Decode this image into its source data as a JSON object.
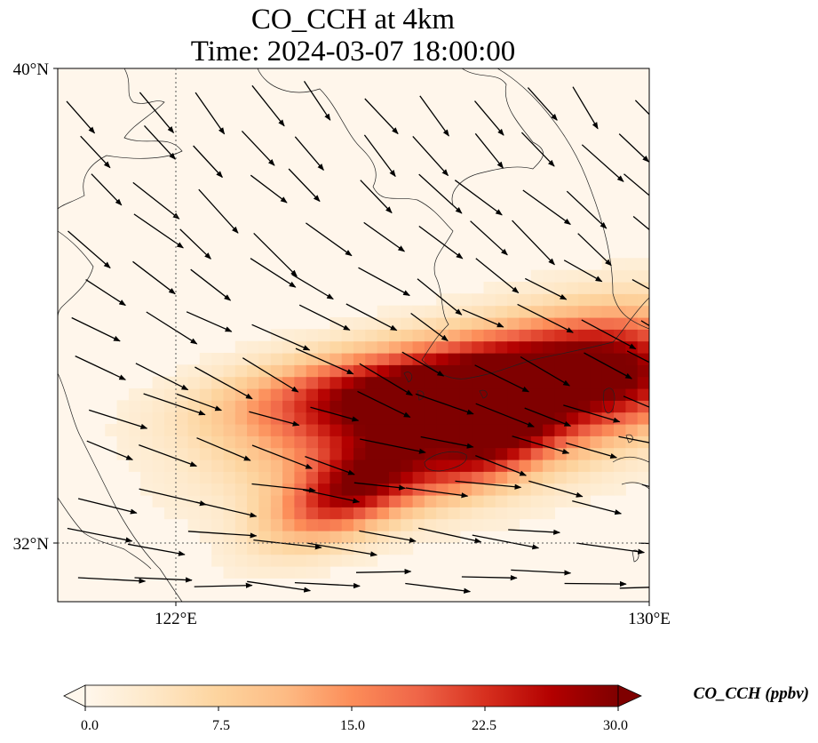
{
  "title_line1": "CO_CCH at 4km",
  "title_line2": "Time: 2024-03-07 18:00:00",
  "map": {
    "lon_range": [
      120,
      130
    ],
    "lat_range": [
      31,
      40
    ],
    "lat_ticks": [
      {
        "value": 40,
        "label": "40°N"
      },
      {
        "value": 32,
        "label": "32°N"
      }
    ],
    "lon_ticks": [
      {
        "value": 122,
        "label": "122°E"
      },
      {
        "value": 130,
        "label": "130°E"
      }
    ],
    "gridlines": {
      "lon": [
        122
      ],
      "lat": [
        32
      ],
      "style": "dotted"
    },
    "plumes": [
      {
        "lon": 126.5,
        "lat": 34.5,
        "peak_ppbv": 26,
        "sx": 2.0,
        "sy": 0.55,
        "angle_deg": -18
      },
      {
        "lon": 128.2,
        "lat": 34.3,
        "peak_ppbv": 20,
        "sx": 1.6,
        "sy": 0.7,
        "angle_deg": -20
      },
      {
        "lon": 124.8,
        "lat": 34.6,
        "peak_ppbv": 16,
        "sx": 1.6,
        "sy": 0.45,
        "angle_deg": -10
      },
      {
        "lon": 125.0,
        "lat": 32.9,
        "peak_ppbv": 25,
        "sx": 1.0,
        "sy": 0.45,
        "angle_deg": -25
      },
      {
        "lon": 129.8,
        "lat": 34.8,
        "peak_ppbv": 14,
        "sx": 0.9,
        "sy": 0.6,
        "angle_deg": 0
      },
      {
        "lon": 127.3,
        "lat": 33.5,
        "peak_ppbv": 12,
        "sx": 0.9,
        "sy": 0.35,
        "angle_deg": -25
      }
    ],
    "wind_vectors": {
      "representation": "black arrows",
      "general_direction": "toward southeast / east"
    }
  },
  "colorbar": {
    "colormap": "OrRd",
    "min": 0.0,
    "max": 30.0,
    "ticks": [
      "0.0",
      "7.5",
      "15.0",
      "22.5",
      "30.0"
    ],
    "extend": "both",
    "label": "CO_CCH (ppbv)",
    "colors": [
      "#fff7ec",
      "#fee8c8",
      "#fdd49e",
      "#fdbb84",
      "#fc8d59",
      "#ef6548",
      "#d7301f",
      "#b30000",
      "#7f0000"
    ]
  }
}
